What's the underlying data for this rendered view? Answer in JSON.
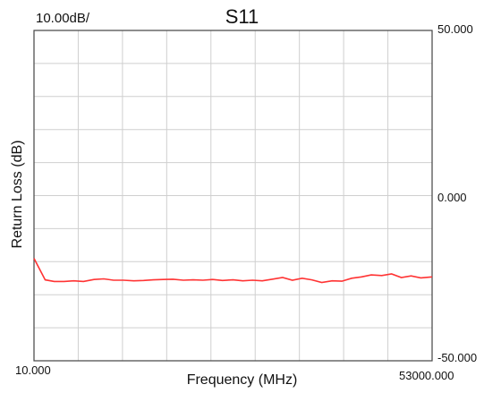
{
  "chart_data": {
    "type": "line",
    "title": "S11",
    "scale_label": "10.00dB/",
    "xlabel": "Frequency (MHz)",
    "ylabel": "Return Loss (dB)",
    "xlim": [
      10.0,
      53000.0
    ],
    "ylim": [
      -50.0,
      50.0
    ],
    "x_tick_labels": [
      "10.000",
      "53000.000"
    ],
    "y_tick_labels": [
      "50.000",
      "0.000",
      "-50.000"
    ],
    "y_ticks": [
      50,
      0,
      -50
    ],
    "grid": true,
    "line_color": "#ff3333",
    "series": [
      {
        "x": [
          10,
          1500,
          2700,
          4000,
          5300,
          6600,
          8000,
          9300,
          10600,
          11900,
          13300,
          14600,
          15900,
          17200,
          18500,
          19900,
          21200,
          22500,
          23800,
          25100,
          26500,
          27800,
          29100,
          30400,
          31700,
          33100,
          34400,
          35700,
          37000,
          38300,
          39700,
          41000,
          42300,
          43600,
          44900,
          46300,
          47600,
          48900,
          50200,
          51500,
          53000
        ],
        "y": [
          -19,
          -25.5,
          -26,
          -26,
          -25.8,
          -26,
          -25.4,
          -25.2,
          -25.6,
          -25.6,
          -25.8,
          -25.7,
          -25.5,
          -25.4,
          -25.3,
          -25.6,
          -25.5,
          -25.6,
          -25.4,
          -25.7,
          -25.5,
          -25.8,
          -25.6,
          -25.8,
          -25.3,
          -24.8,
          -25.6,
          -25,
          -25.5,
          -26.3,
          -25.8,
          -25.9,
          -25,
          -24.6,
          -24,
          -24.2,
          -23.7,
          -24.8,
          -24.3,
          -24.9,
          -24.6
        ]
      }
    ]
  }
}
